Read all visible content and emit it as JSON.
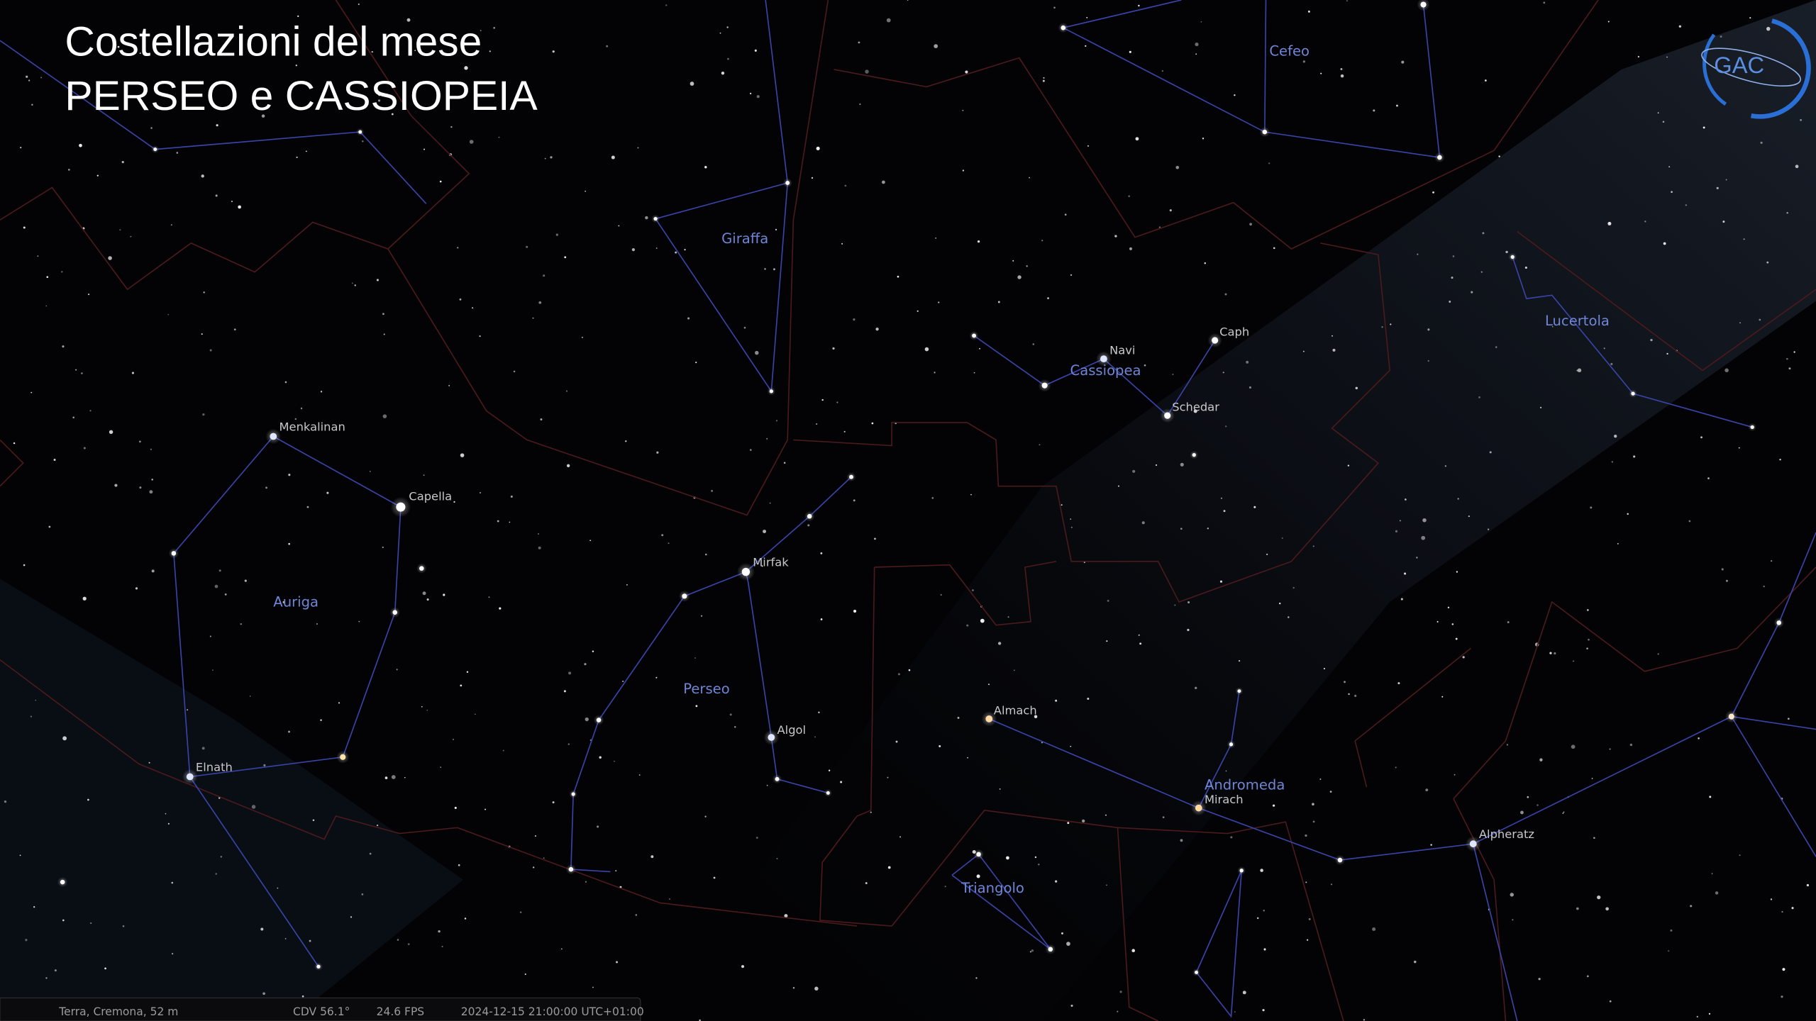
{
  "title": {
    "line1": "Costellazioni del mese",
    "line2": "PERSEO e CASSIOPEIA"
  },
  "logo": "GAC",
  "constellations": [
    "Cefeo",
    "Giraffa",
    "Cassiopea",
    "Lucertola",
    "Auriga",
    "Perseo",
    "Andromeda",
    "Triangolo"
  ],
  "stars": [
    "Navi",
    "Caph",
    "Schedar",
    "Menkalinan",
    "Capella",
    "Mirfak",
    "Algol",
    "Almach",
    "Mirach",
    "Elnath",
    "Alpheratz"
  ],
  "status": {
    "location": "Terra, Cremona, 52 m",
    "fov": "CDV 56.1°",
    "fps": "24.6 FPS",
    "datetime": "2024-12-15 21:00:00 UTC+01:00"
  }
}
